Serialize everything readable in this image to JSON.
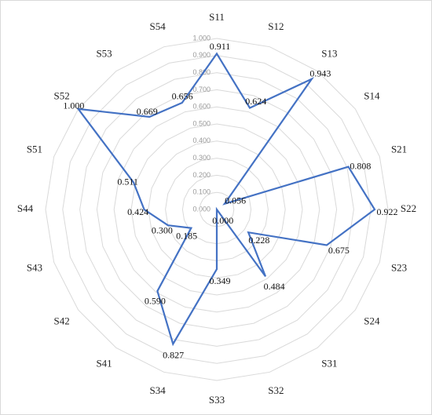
{
  "chart_data": {
    "type": "radar",
    "categories": [
      "S11",
      "S12",
      "S13",
      "S14",
      "S21",
      "S22",
      "S23",
      "S24",
      "S31",
      "S32",
      "S33",
      "S34",
      "S41",
      "S42",
      "S43",
      "S44",
      "S51",
      "S52",
      "S53",
      "S54"
    ],
    "series": [
      {
        "color": "#4472c4",
        "values": [
          0.911,
          0.624,
          0.943,
          0.056,
          0.808,
          0.922,
          0.675,
          0.228,
          0.484,
          0,
          0.349,
          0.827,
          0.59,
          0.185,
          0.3,
          0.424,
          0.511,
          1,
          0.669,
          0.656
        ],
        "value_labels": [
          "0.911",
          "0.624",
          "0.943",
          "0.056",
          "0.808",
          "0.922",
          "0.675",
          "0.228",
          "0.484",
          "0.000",
          "0.349",
          "0.827",
          "0.590",
          "0.185",
          "0.300",
          "0.424",
          "0.511",
          "1.000",
          "0.669",
          "0.656"
        ]
      }
    ],
    "ylim": [
      0,
      1
    ],
    "yticks": [
      {
        "value": 0,
        "label": "0.000"
      },
      {
        "value": 0.1,
        "label": "0.100"
      },
      {
        "value": 0.2,
        "label": "0.200"
      },
      {
        "value": 0.3,
        "label": "0.300"
      },
      {
        "value": 0.4,
        "label": "0.400"
      },
      {
        "value": 0.5,
        "label": "0.500"
      },
      {
        "value": 0.6,
        "label": "0.600"
      },
      {
        "value": 0.7,
        "label": "0.700"
      },
      {
        "value": 0.8,
        "label": "0.800"
      },
      {
        "value": 0.9,
        "label": "0.900"
      },
      {
        "value": 1,
        "label": "1.000"
      }
    ],
    "grid": true
  }
}
